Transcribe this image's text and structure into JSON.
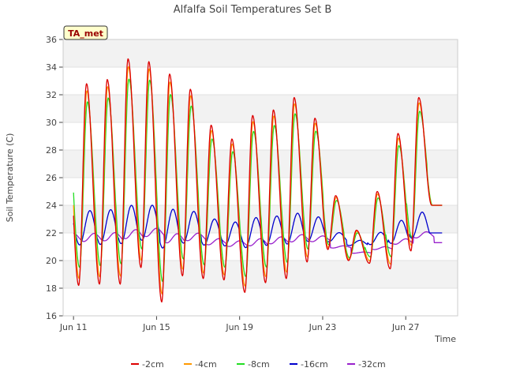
{
  "chart_data": {
    "type": "line",
    "title": "Alfalfa Soil Temperatures Set B",
    "xlabel": "Time",
    "ylabel": "Soil Temperature (C)",
    "station_badge": "TA_met",
    "xlim": [
      "2024-06-10T12:00",
      "2024-06-29T12:00"
    ],
    "ylim": [
      16,
      36
    ],
    "y_ticks": [
      16,
      18,
      20,
      22,
      24,
      26,
      28,
      30,
      32,
      34,
      36
    ],
    "x_ticks": [
      {
        "label": "Jun 11",
        "date": "2024-06-11"
      },
      {
        "label": "Jun 15",
        "date": "2024-06-15"
      },
      {
        "label": "Jun 19",
        "date": "2024-06-19"
      },
      {
        "label": "Jun 23",
        "date": "2024-06-23"
      },
      {
        "label": "Jun 27",
        "date": "2024-06-27"
      }
    ],
    "grid": "horizontal, alternating bands",
    "legend": "bottom",
    "start": "2024-06-11T00:00",
    "end": "2024-06-28T18:00",
    "daily_extremes": [
      {
        "date": "2024-06-11",
        "max_2cm": 32.8,
        "min_2cm": 18.2
      },
      {
        "date": "2024-06-12",
        "max_2cm": 33.1,
        "min_2cm": 18.3
      },
      {
        "date": "2024-06-13",
        "max_2cm": 34.6,
        "min_2cm": 18.3
      },
      {
        "date": "2024-06-14",
        "max_2cm": 34.4,
        "min_2cm": 19.5
      },
      {
        "date": "2024-06-15",
        "max_2cm": 33.5,
        "min_2cm": 17.0
      },
      {
        "date": "2024-06-16",
        "max_2cm": 32.4,
        "min_2cm": 18.9
      },
      {
        "date": "2024-06-17",
        "max_2cm": 29.8,
        "min_2cm": 18.7
      },
      {
        "date": "2024-06-18",
        "max_2cm": 28.8,
        "min_2cm": 18.6
      },
      {
        "date": "2024-06-19",
        "max_2cm": 30.5,
        "min_2cm": 17.7
      },
      {
        "date": "2024-06-20",
        "max_2cm": 30.9,
        "min_2cm": 18.4
      },
      {
        "date": "2024-06-21",
        "max_2cm": 31.8,
        "min_2cm": 18.7
      },
      {
        "date": "2024-06-22",
        "max_2cm": 30.3,
        "min_2cm": 19.9
      },
      {
        "date": "2024-06-23",
        "max_2cm": 24.7,
        "min_2cm": 20.8
      },
      {
        "date": "2024-06-24",
        "max_2cm": 22.2,
        "min_2cm": 20.0
      },
      {
        "date": "2024-06-25",
        "max_2cm": 25.0,
        "min_2cm": 19.8
      },
      {
        "date": "2024-06-26",
        "max_2cm": 29.2,
        "min_2cm": 19.4
      },
      {
        "date": "2024-06-27",
        "max_2cm": 31.8,
        "min_2cm": 20.7
      },
      {
        "date": "2024-06-28",
        "max_2cm": 24.0,
        "min_2cm": 24.0
      }
    ],
    "series": [
      {
        "name": "-2cm",
        "color": "#dd0000"
      },
      {
        "name": "-4cm",
        "color": "#ff9900"
      },
      {
        "name": "-8cm",
        "color": "#22dd22"
      },
      {
        "name": "-16cm",
        "color": "#0000cc"
      },
      {
        "name": "-32cm",
        "color": "#9922cc"
      }
    ]
  }
}
